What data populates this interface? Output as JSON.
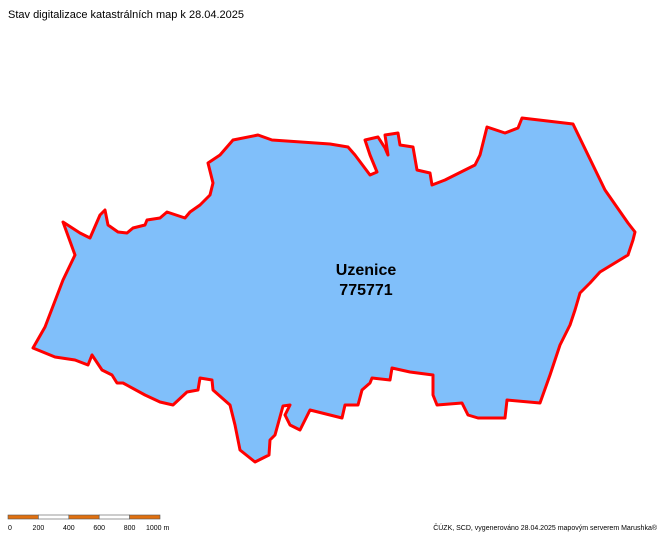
{
  "header": {
    "title": "Stav digitalizace katastrálních map k 28.04.2025"
  },
  "area": {
    "name": "Uzenice",
    "code": "775771"
  },
  "scale": {
    "ticks": [
      0,
      200,
      400,
      600,
      800,
      {
        "value": 1000,
        "label": "1000 m"
      }
    ]
  },
  "footer": {
    "credit": "ČÚZK, SCD, vygenerováno 28.04.2025 mapovým serverem Marushka®"
  }
}
